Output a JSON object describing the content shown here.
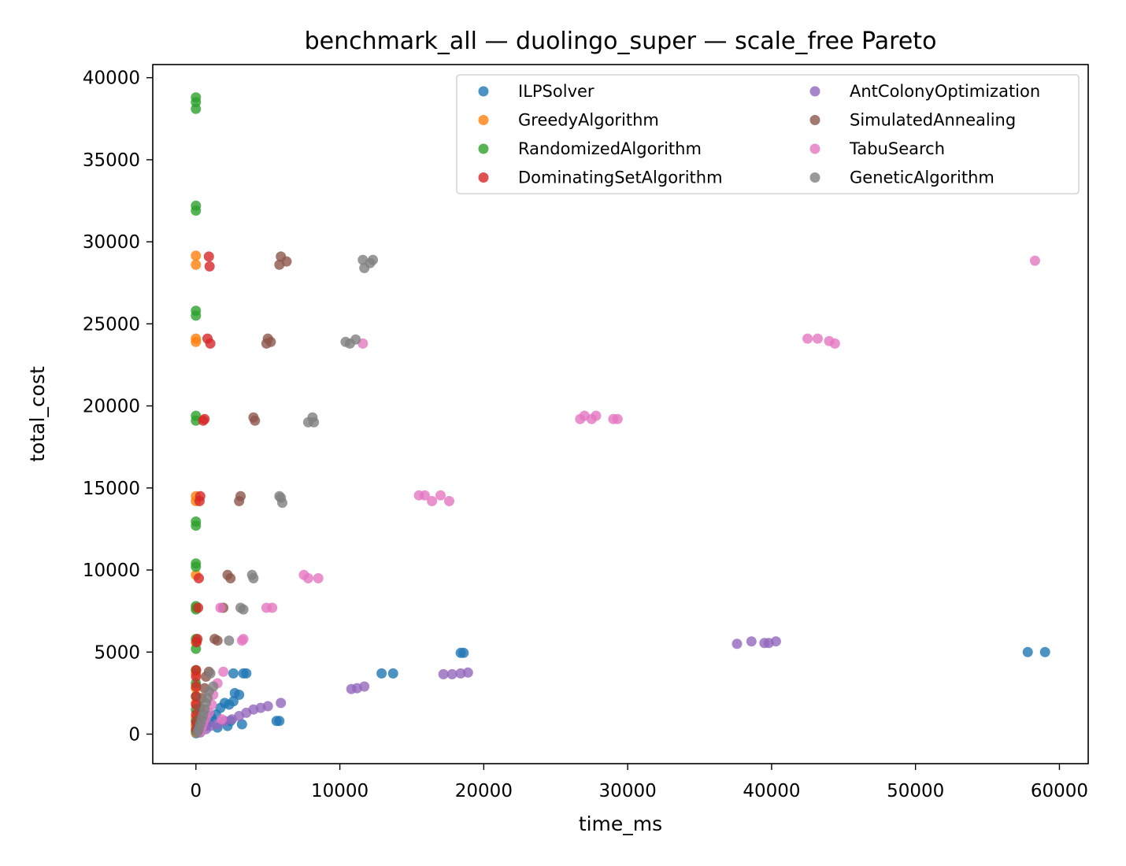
{
  "chart_data": {
    "type": "scatter",
    "title": "benchmark_all — duolingo_super — scale_free Pareto",
    "xlabel": "time_ms",
    "ylabel": "total_cost",
    "xlim": [
      -3000,
      62000
    ],
    "ylim": [
      -1800,
      40800
    ],
    "xticks": [
      0,
      10000,
      20000,
      30000,
      40000,
      50000,
      60000
    ],
    "yticks": [
      0,
      5000,
      10000,
      15000,
      20000,
      25000,
      30000,
      35000,
      40000
    ],
    "grid": false,
    "legend_position": "top-right",
    "series": [
      {
        "name": "ILPSolver",
        "color": "#1f77b4",
        "points": [
          [
            10,
            50
          ],
          [
            40,
            120
          ],
          [
            80,
            200
          ],
          [
            150,
            300
          ],
          [
            250,
            450
          ],
          [
            350,
            600
          ],
          [
            500,
            800
          ],
          [
            700,
            500
          ],
          [
            900,
            700
          ],
          [
            1100,
            950
          ],
          [
            1400,
            1200
          ],
          [
            1700,
            1600
          ],
          [
            2000,
            1900
          ],
          [
            2200,
            500
          ],
          [
            2400,
            800
          ],
          [
            2600,
            2000
          ],
          [
            2700,
            2500
          ],
          [
            3000,
            2400
          ],
          [
            2600,
            3700
          ],
          [
            3300,
            3700
          ],
          [
            3500,
            3700
          ],
          [
            3200,
            600
          ],
          [
            5600,
            800
          ],
          [
            5800,
            800
          ],
          [
            12900,
            3700
          ],
          [
            13700,
            3700
          ],
          [
            18400,
            4950
          ],
          [
            18600,
            4950
          ],
          [
            57800,
            5000
          ],
          [
            59000,
            5000
          ],
          [
            1000,
            1100
          ],
          [
            1500,
            400
          ],
          [
            2300,
            1800
          ]
        ]
      },
      {
        "name": "GreedyAlgorithm",
        "color": "#ff7f0e",
        "points": [
          [
            0,
            29150
          ],
          [
            0,
            28600
          ],
          [
            0,
            24100
          ],
          [
            0,
            23900
          ],
          [
            0,
            14500
          ],
          [
            0,
            14200
          ],
          [
            0,
            9700
          ],
          [
            0,
            7700
          ],
          [
            0,
            5600
          ],
          [
            0,
            3700
          ],
          [
            0,
            2800
          ],
          [
            0,
            1900
          ],
          [
            0,
            1000
          ],
          [
            0,
            500
          ],
          [
            0,
            100
          ]
        ]
      },
      {
        "name": "RandomizedAlgorithm",
        "color": "#2ca02c",
        "points": [
          [
            0,
            38800
          ],
          [
            0,
            38500
          ],
          [
            0,
            38100
          ],
          [
            0,
            32200
          ],
          [
            0,
            31900
          ],
          [
            0,
            25800
          ],
          [
            0,
            25500
          ],
          [
            0,
            19400
          ],
          [
            0,
            19100
          ],
          [
            0,
            12950
          ],
          [
            0,
            12700
          ],
          [
            0,
            10400
          ],
          [
            0,
            10200
          ],
          [
            0,
            7800
          ],
          [
            0,
            7600
          ],
          [
            0,
            5800
          ],
          [
            0,
            5200
          ],
          [
            0,
            3900
          ],
          [
            0,
            3100
          ],
          [
            0,
            2300
          ],
          [
            0,
            1500
          ],
          [
            0,
            800
          ],
          [
            0,
            200
          ]
        ]
      },
      {
        "name": "DominatingSetAlgorithm",
        "color": "#d62728",
        "points": [
          [
            900,
            29100
          ],
          [
            950,
            28500
          ],
          [
            800,
            24100
          ],
          [
            1000,
            23800
          ],
          [
            600,
            19200
          ],
          [
            500,
            19100
          ],
          [
            300,
            14500
          ],
          [
            250,
            14200
          ],
          [
            200,
            9500
          ],
          [
            150,
            7700
          ],
          [
            100,
            5800
          ],
          [
            50,
            5600
          ],
          [
            10,
            3900
          ],
          [
            10,
            3500
          ],
          [
            10,
            2900
          ],
          [
            10,
            2300
          ],
          [
            10,
            1800
          ],
          [
            10,
            1200
          ],
          [
            10,
            700
          ],
          [
            10,
            300
          ]
        ]
      },
      {
        "name": "AntColonyOptimization",
        "color": "#9467bd",
        "points": [
          [
            2000,
            800
          ],
          [
            2500,
            900
          ],
          [
            3000,
            1100
          ],
          [
            3500,
            1300
          ],
          [
            4000,
            1500
          ],
          [
            4500,
            1600
          ],
          [
            5000,
            1700
          ],
          [
            5900,
            1900
          ],
          [
            10800,
            2750
          ],
          [
            11200,
            2800
          ],
          [
            11700,
            2900
          ],
          [
            17200,
            3650
          ],
          [
            17800,
            3650
          ],
          [
            18400,
            3700
          ],
          [
            18900,
            3750
          ],
          [
            37600,
            5500
          ],
          [
            38600,
            5650
          ],
          [
            39500,
            5550
          ],
          [
            39800,
            5550
          ],
          [
            40300,
            5650
          ],
          [
            1000,
            500
          ],
          [
            1500,
            600
          ],
          [
            700,
            300
          ],
          [
            300,
            100
          ]
        ]
      },
      {
        "name": "SimulatedAnnealing",
        "color": "#8c564b",
        "points": [
          [
            5900,
            29100
          ],
          [
            6300,
            28800
          ],
          [
            5800,
            28600
          ],
          [
            5000,
            24100
          ],
          [
            5200,
            23900
          ],
          [
            4900,
            23800
          ],
          [
            4000,
            19300
          ],
          [
            4100,
            19100
          ],
          [
            3100,
            14500
          ],
          [
            3000,
            14200
          ],
          [
            2200,
            9700
          ],
          [
            2400,
            9500
          ],
          [
            1900,
            7700
          ],
          [
            1300,
            5800
          ],
          [
            1500,
            5700
          ],
          [
            900,
            3800
          ],
          [
            700,
            3500
          ],
          [
            600,
            2800
          ],
          [
            400,
            2200
          ],
          [
            300,
            1600
          ],
          [
            200,
            900
          ],
          [
            100,
            400
          ]
        ]
      },
      {
        "name": "TabuSearch",
        "color": "#e377c2",
        "points": [
          [
            58300,
            28850
          ],
          [
            42500,
            24100
          ],
          [
            43200,
            24100
          ],
          [
            44000,
            23950
          ],
          [
            44400,
            23800
          ],
          [
            11600,
            23800
          ],
          [
            26700,
            19200
          ],
          [
            27000,
            19400
          ],
          [
            27500,
            19200
          ],
          [
            27800,
            19400
          ],
          [
            29000,
            19200
          ],
          [
            29300,
            19200
          ],
          [
            15500,
            14550
          ],
          [
            15900,
            14550
          ],
          [
            16400,
            14200
          ],
          [
            17000,
            14550
          ],
          [
            17600,
            14200
          ],
          [
            7500,
            9700
          ],
          [
            7800,
            9500
          ],
          [
            8500,
            9500
          ],
          [
            1700,
            7700
          ],
          [
            4900,
            7700
          ],
          [
            5300,
            7700
          ],
          [
            3200,
            5700
          ],
          [
            3300,
            5800
          ],
          [
            1900,
            3800
          ],
          [
            1500,
            3100
          ],
          [
            1200,
            2400
          ],
          [
            1100,
            1800
          ],
          [
            900,
            1300
          ],
          [
            700,
            1000
          ],
          [
            500,
            700
          ],
          [
            400,
            400
          ],
          [
            300,
            150
          ],
          [
            1800,
            900
          ]
        ]
      },
      {
        "name": "GeneticAlgorithm",
        "color": "#7f7f7f",
        "points": [
          [
            11600,
            28900
          ],
          [
            12100,
            28700
          ],
          [
            11700,
            28400
          ],
          [
            12300,
            28900
          ],
          [
            10400,
            23900
          ],
          [
            10700,
            23800
          ],
          [
            11100,
            24050
          ],
          [
            7800,
            19000
          ],
          [
            8100,
            19300
          ],
          [
            8200,
            19000
          ],
          [
            5800,
            14500
          ],
          [
            6000,
            14100
          ],
          [
            5900,
            14400
          ],
          [
            3900,
            9700
          ],
          [
            4000,
            9500
          ],
          [
            3100,
            7700
          ],
          [
            3300,
            7600
          ],
          [
            2300,
            5700
          ],
          [
            1000,
            3700
          ],
          [
            1200,
            2900
          ],
          [
            900,
            2600
          ],
          [
            800,
            2200
          ],
          [
            700,
            1900
          ],
          [
            600,
            1500
          ],
          [
            500,
            1200
          ],
          [
            400,
            900
          ],
          [
            300,
            600
          ],
          [
            200,
            300
          ],
          [
            100,
            100
          ]
        ]
      }
    ]
  }
}
